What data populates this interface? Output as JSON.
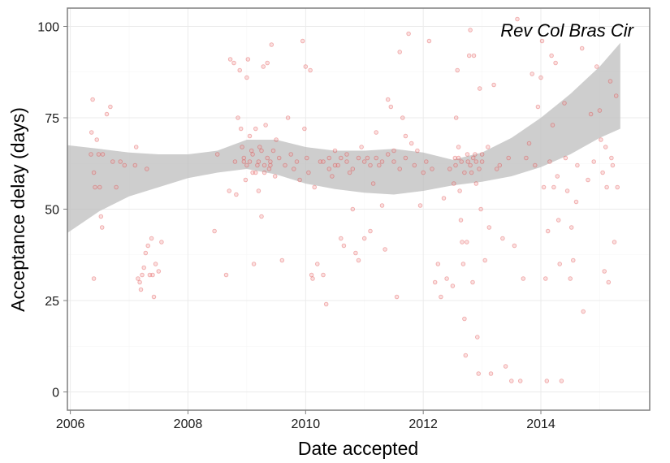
{
  "chart_data": {
    "type": "scatter",
    "title": "",
    "annotation": "Rev Col Bras Cir",
    "xlabel": "Date accepted",
    "ylabel": "Acceptance delay (days)",
    "x_tick_labels": [
      "2006",
      "2008",
      "2010",
      "2012",
      "2014"
    ],
    "y_tick_labels": [
      "0",
      "25",
      "50",
      "75",
      "100"
    ],
    "x_ticks": [
      2006,
      2008,
      2010,
      2012,
      2014
    ],
    "y_ticks": [
      0,
      25,
      50,
      75,
      100
    ],
    "xlim": [
      2005.95,
      2015.85
    ],
    "ylim": [
      -5,
      105
    ],
    "grid": true,
    "legend": "none",
    "colors": {
      "points_fill": "#f4a3a3",
      "points_stroke": "#d62728",
      "ribbon": "#bdbdbd",
      "panel_border": "#7f7f7f",
      "grid_major": "#ebebeb",
      "grid_minor": "#f5f5f5"
    },
    "smooth_band": {
      "x": [
        2005.95,
        2006.5,
        2007.0,
        2007.5,
        2008.0,
        2008.5,
        2009.0,
        2009.5,
        2010.0,
        2010.5,
        2011.0,
        2011.5,
        2012.0,
        2012.5,
        2013.0,
        2013.5,
        2014.0,
        2014.5,
        2015.0,
        2015.35
      ],
      "lower": [
        43.5,
        49.5,
        53.5,
        56.0,
        58.5,
        60.0,
        61.0,
        59.5,
        57.0,
        55.5,
        54.5,
        54.0,
        55.0,
        56.5,
        57.5,
        59.0,
        61.5,
        65.0,
        69.5,
        72.0
      ],
      "upper": [
        67.5,
        66.5,
        65.5,
        65.0,
        65.0,
        66.0,
        69.0,
        69.0,
        67.0,
        66.0,
        66.0,
        66.5,
        65.5,
        63.5,
        65.5,
        69.5,
        75.0,
        81.5,
        89.0,
        95.5
      ]
    },
    "points": [
      {
        "x": 2006.38,
        "y": 80
      },
      {
        "x": 2006.36,
        "y": 71
      },
      {
        "x": 2006.35,
        "y": 65
      },
      {
        "x": 2006.48,
        "y": 65
      },
      {
        "x": 2006.55,
        "y": 65
      },
      {
        "x": 2006.4,
        "y": 60
      },
      {
        "x": 2006.42,
        "y": 56
      },
      {
        "x": 2006.5,
        "y": 56
      },
      {
        "x": 2006.52,
        "y": 48
      },
      {
        "x": 2006.54,
        "y": 45
      },
      {
        "x": 2006.4,
        "y": 31
      },
      {
        "x": 2006.45,
        "y": 69
      },
      {
        "x": 2006.62,
        "y": 76
      },
      {
        "x": 2006.68,
        "y": 78
      },
      {
        "x": 2006.72,
        "y": 63
      },
      {
        "x": 2006.78,
        "y": 56
      },
      {
        "x": 2006.85,
        "y": 63
      },
      {
        "x": 2006.92,
        "y": 62
      },
      {
        "x": 2007.1,
        "y": 62
      },
      {
        "x": 2007.12,
        "y": 67
      },
      {
        "x": 2007.3,
        "y": 61
      },
      {
        "x": 2007.18,
        "y": 30
      },
      {
        "x": 2007.2,
        "y": 28
      },
      {
        "x": 2007.22,
        "y": 32
      },
      {
        "x": 2007.25,
        "y": 34
      },
      {
        "x": 2007.28,
        "y": 38
      },
      {
        "x": 2007.32,
        "y": 40
      },
      {
        "x": 2007.35,
        "y": 32
      },
      {
        "x": 2007.38,
        "y": 42
      },
      {
        "x": 2007.42,
        "y": 26
      },
      {
        "x": 2007.45,
        "y": 35
      },
      {
        "x": 2007.5,
        "y": 33
      },
      {
        "x": 2007.55,
        "y": 41
      },
      {
        "x": 2007.15,
        "y": 31
      },
      {
        "x": 2007.4,
        "y": 32
      },
      {
        "x": 2008.45,
        "y": 44
      },
      {
        "x": 2008.5,
        "y": 65
      },
      {
        "x": 2008.65,
        "y": 32
      },
      {
        "x": 2008.7,
        "y": 55
      },
      {
        "x": 2008.72,
        "y": 91
      },
      {
        "x": 2008.78,
        "y": 90
      },
      {
        "x": 2008.8,
        "y": 63
      },
      {
        "x": 2008.82,
        "y": 54
      },
      {
        "x": 2008.85,
        "y": 75
      },
      {
        "x": 2008.88,
        "y": 88
      },
      {
        "x": 2008.9,
        "y": 72
      },
      {
        "x": 2008.92,
        "y": 67
      },
      {
        "x": 2008.95,
        "y": 63
      },
      {
        "x": 2008.98,
        "y": 58
      },
      {
        "x": 2009.0,
        "y": 86
      },
      {
        "x": 2009.02,
        "y": 91
      },
      {
        "x": 2009.05,
        "y": 70
      },
      {
        "x": 2009.08,
        "y": 66
      },
      {
        "x": 2009.1,
        "y": 60
      },
      {
        "x": 2009.12,
        "y": 35
      },
      {
        "x": 2009.15,
        "y": 72
      },
      {
        "x": 2009.18,
        "y": 62
      },
      {
        "x": 2009.2,
        "y": 55
      },
      {
        "x": 2009.22,
        "y": 67
      },
      {
        "x": 2009.25,
        "y": 48
      },
      {
        "x": 2009.28,
        "y": 89
      },
      {
        "x": 2009.3,
        "y": 60
      },
      {
        "x": 2009.32,
        "y": 73
      },
      {
        "x": 2009.35,
        "y": 90
      },
      {
        "x": 2009.38,
        "y": 61
      },
      {
        "x": 2009.4,
        "y": 62
      },
      {
        "x": 2009.42,
        "y": 95
      },
      {
        "x": 2009.45,
        "y": 66
      },
      {
        "x": 2009.48,
        "y": 59
      },
      {
        "x": 2009.5,
        "y": 69
      },
      {
        "x": 2009.55,
        "y": 64
      },
      {
        "x": 2009.6,
        "y": 36
      },
      {
        "x": 2009.65,
        "y": 62
      },
      {
        "x": 2009.7,
        "y": 75
      },
      {
        "x": 2009.75,
        "y": 65
      },
      {
        "x": 2009.8,
        "y": 61
      },
      {
        "x": 2009.85,
        "y": 63
      },
      {
        "x": 2009.9,
        "y": 58
      },
      {
        "x": 2009.95,
        "y": 96
      },
      {
        "x": 2009.98,
        "y": 72
      },
      {
        "x": 2010.0,
        "y": 89
      },
      {
        "x": 2010.02,
        "y": 64
      },
      {
        "x": 2010.05,
        "y": 60
      },
      {
        "x": 2010.08,
        "y": 88
      },
      {
        "x": 2010.1,
        "y": 32
      },
      {
        "x": 2010.12,
        "y": 31
      },
      {
        "x": 2010.15,
        "y": 56
      },
      {
        "x": 2010.2,
        "y": 35
      },
      {
        "x": 2010.25,
        "y": 63
      },
      {
        "x": 2010.3,
        "y": 32
      },
      {
        "x": 2010.35,
        "y": 24
      },
      {
        "x": 2010.4,
        "y": 61
      },
      {
        "x": 2010.45,
        "y": 59
      },
      {
        "x": 2010.5,
        "y": 66
      },
      {
        "x": 2010.55,
        "y": 62
      },
      {
        "x": 2010.6,
        "y": 42
      },
      {
        "x": 2010.65,
        "y": 40
      },
      {
        "x": 2010.7,
        "y": 65
      },
      {
        "x": 2010.75,
        "y": 60
      },
      {
        "x": 2010.8,
        "y": 50
      },
      {
        "x": 2010.85,
        "y": 38
      },
      {
        "x": 2010.9,
        "y": 36
      },
      {
        "x": 2010.95,
        "y": 67
      },
      {
        "x": 2011.0,
        "y": 42
      },
      {
        "x": 2011.05,
        "y": 64
      },
      {
        "x": 2011.1,
        "y": 44
      },
      {
        "x": 2011.15,
        "y": 57
      },
      {
        "x": 2011.2,
        "y": 71
      },
      {
        "x": 2011.25,
        "y": 62
      },
      {
        "x": 2011.3,
        "y": 51
      },
      {
        "x": 2011.35,
        "y": 39
      },
      {
        "x": 2011.4,
        "y": 80
      },
      {
        "x": 2011.45,
        "y": 78
      },
      {
        "x": 2011.5,
        "y": 66
      },
      {
        "x": 2011.55,
        "y": 26
      },
      {
        "x": 2011.6,
        "y": 93
      },
      {
        "x": 2011.65,
        "y": 75
      },
      {
        "x": 2011.7,
        "y": 70
      },
      {
        "x": 2011.75,
        "y": 98
      },
      {
        "x": 2011.8,
        "y": 68
      },
      {
        "x": 2011.85,
        "y": 62
      },
      {
        "x": 2011.9,
        "y": 66
      },
      {
        "x": 2011.95,
        "y": 51
      },
      {
        "x": 2012.0,
        "y": 60
      },
      {
        "x": 2012.05,
        "y": 63
      },
      {
        "x": 2012.1,
        "y": 96
      },
      {
        "x": 2012.15,
        "y": 61
      },
      {
        "x": 2012.2,
        "y": 30
      },
      {
        "x": 2012.25,
        "y": 35
      },
      {
        "x": 2012.3,
        "y": 26
      },
      {
        "x": 2012.35,
        "y": 53
      },
      {
        "x": 2012.4,
        "y": 31
      },
      {
        "x": 2012.45,
        "y": 61
      },
      {
        "x": 2012.5,
        "y": 29
      },
      {
        "x": 2012.52,
        "y": 57
      },
      {
        "x": 2012.54,
        "y": 64
      },
      {
        "x": 2012.56,
        "y": 75
      },
      {
        "x": 2012.58,
        "y": 88
      },
      {
        "x": 2012.6,
        "y": 67
      },
      {
        "x": 2012.62,
        "y": 55
      },
      {
        "x": 2012.64,
        "y": 47
      },
      {
        "x": 2012.66,
        "y": 41
      },
      {
        "x": 2012.68,
        "y": 35
      },
      {
        "x": 2012.7,
        "y": 20
      },
      {
        "x": 2012.72,
        "y": 10
      },
      {
        "x": 2012.74,
        "y": 41
      },
      {
        "x": 2012.76,
        "y": 63
      },
      {
        "x": 2012.78,
        "y": 92
      },
      {
        "x": 2012.8,
        "y": 99
      },
      {
        "x": 2012.82,
        "y": 60
      },
      {
        "x": 2012.84,
        "y": 30
      },
      {
        "x": 2012.86,
        "y": 92
      },
      {
        "x": 2012.88,
        "y": 65
      },
      {
        "x": 2012.9,
        "y": 57
      },
      {
        "x": 2012.92,
        "y": 15
      },
      {
        "x": 2012.94,
        "y": 5
      },
      {
        "x": 2012.96,
        "y": 83
      },
      {
        "x": 2012.98,
        "y": 50
      },
      {
        "x": 2013.0,
        "y": 63
      },
      {
        "x": 2013.05,
        "y": 36
      },
      {
        "x": 2013.1,
        "y": 67
      },
      {
        "x": 2013.12,
        "y": 45
      },
      {
        "x": 2013.15,
        "y": 5
      },
      {
        "x": 2013.2,
        "y": 84
      },
      {
        "x": 2013.25,
        "y": 61
      },
      {
        "x": 2013.3,
        "y": 62
      },
      {
        "x": 2013.35,
        "y": 42
      },
      {
        "x": 2013.4,
        "y": 7
      },
      {
        "x": 2013.45,
        "y": 64
      },
      {
        "x": 2013.5,
        "y": 3
      },
      {
        "x": 2013.55,
        "y": 40
      },
      {
        "x": 2013.6,
        "y": 102
      },
      {
        "x": 2013.65,
        "y": 3
      },
      {
        "x": 2013.7,
        "y": 31
      },
      {
        "x": 2013.75,
        "y": 64
      },
      {
        "x": 2013.8,
        "y": 68
      },
      {
        "x": 2013.85,
        "y": 87
      },
      {
        "x": 2013.9,
        "y": 62
      },
      {
        "x": 2013.95,
        "y": 78
      },
      {
        "x": 2014.0,
        "y": 86
      },
      {
        "x": 2014.02,
        "y": 96
      },
      {
        "x": 2014.05,
        "y": 56
      },
      {
        "x": 2014.08,
        "y": 31
      },
      {
        "x": 2014.1,
        "y": 3
      },
      {
        "x": 2014.12,
        "y": 44
      },
      {
        "x": 2014.15,
        "y": 63
      },
      {
        "x": 2014.18,
        "y": 92
      },
      {
        "x": 2014.2,
        "y": 73
      },
      {
        "x": 2014.22,
        "y": 56
      },
      {
        "x": 2014.25,
        "y": 90
      },
      {
        "x": 2014.28,
        "y": 59
      },
      {
        "x": 2014.3,
        "y": 47
      },
      {
        "x": 2014.32,
        "y": 35
      },
      {
        "x": 2014.35,
        "y": 3
      },
      {
        "x": 2014.4,
        "y": 79
      },
      {
        "x": 2014.42,
        "y": 64
      },
      {
        "x": 2014.45,
        "y": 55
      },
      {
        "x": 2014.5,
        "y": 31
      },
      {
        "x": 2014.52,
        "y": 45
      },
      {
        "x": 2014.55,
        "y": 36
      },
      {
        "x": 2014.6,
        "y": 52
      },
      {
        "x": 2014.62,
        "y": 62
      },
      {
        "x": 2014.7,
        "y": 94
      },
      {
        "x": 2014.72,
        "y": 22
      },
      {
        "x": 2014.8,
        "y": 58
      },
      {
        "x": 2014.85,
        "y": 76
      },
      {
        "x": 2014.9,
        "y": 63
      },
      {
        "x": 2014.95,
        "y": 89
      },
      {
        "x": 2015.0,
        "y": 77
      },
      {
        "x": 2015.02,
        "y": 69
      },
      {
        "x": 2015.05,
        "y": 60
      },
      {
        "x": 2015.08,
        "y": 33
      },
      {
        "x": 2015.1,
        "y": 67
      },
      {
        "x": 2015.12,
        "y": 56
      },
      {
        "x": 2015.15,
        "y": 30
      },
      {
        "x": 2015.18,
        "y": 85
      },
      {
        "x": 2015.2,
        "y": 64
      },
      {
        "x": 2015.22,
        "y": 62
      },
      {
        "x": 2015.25,
        "y": 41
      },
      {
        "x": 2015.28,
        "y": 81
      },
      {
        "x": 2015.3,
        "y": 56
      },
      {
        "x": 2008.95,
        "y": 64
      },
      {
        "x": 2009.0,
        "y": 62
      },
      {
        "x": 2009.05,
        "y": 63
      },
      {
        "x": 2009.1,
        "y": 65
      },
      {
        "x": 2009.15,
        "y": 60
      },
      {
        "x": 2009.2,
        "y": 63
      },
      {
        "x": 2009.25,
        "y": 66
      },
      {
        "x": 2009.3,
        "y": 62
      },
      {
        "x": 2009.35,
        "y": 64
      },
      {
        "x": 2009.4,
        "y": 63
      },
      {
        "x": 2010.3,
        "y": 63
      },
      {
        "x": 2010.4,
        "y": 64
      },
      {
        "x": 2010.5,
        "y": 62
      },
      {
        "x": 2010.6,
        "y": 64
      },
      {
        "x": 2010.7,
        "y": 63
      },
      {
        "x": 2010.8,
        "y": 61
      },
      {
        "x": 2010.9,
        "y": 64
      },
      {
        "x": 2011.0,
        "y": 63
      },
      {
        "x": 2011.1,
        "y": 62
      },
      {
        "x": 2011.2,
        "y": 64
      },
      {
        "x": 2011.3,
        "y": 63
      },
      {
        "x": 2011.4,
        "y": 65
      },
      {
        "x": 2011.5,
        "y": 63
      },
      {
        "x": 2011.6,
        "y": 61
      },
      {
        "x": 2011.7,
        "y": 64
      },
      {
        "x": 2012.55,
        "y": 62
      },
      {
        "x": 2012.6,
        "y": 64
      },
      {
        "x": 2012.65,
        "y": 63
      },
      {
        "x": 2012.7,
        "y": 60
      },
      {
        "x": 2012.75,
        "y": 65
      },
      {
        "x": 2012.8,
        "y": 62
      },
      {
        "x": 2012.85,
        "y": 64
      },
      {
        "x": 2012.9,
        "y": 63
      },
      {
        "x": 2012.95,
        "y": 61
      },
      {
        "x": 2013.0,
        "y": 65
      }
    ]
  }
}
